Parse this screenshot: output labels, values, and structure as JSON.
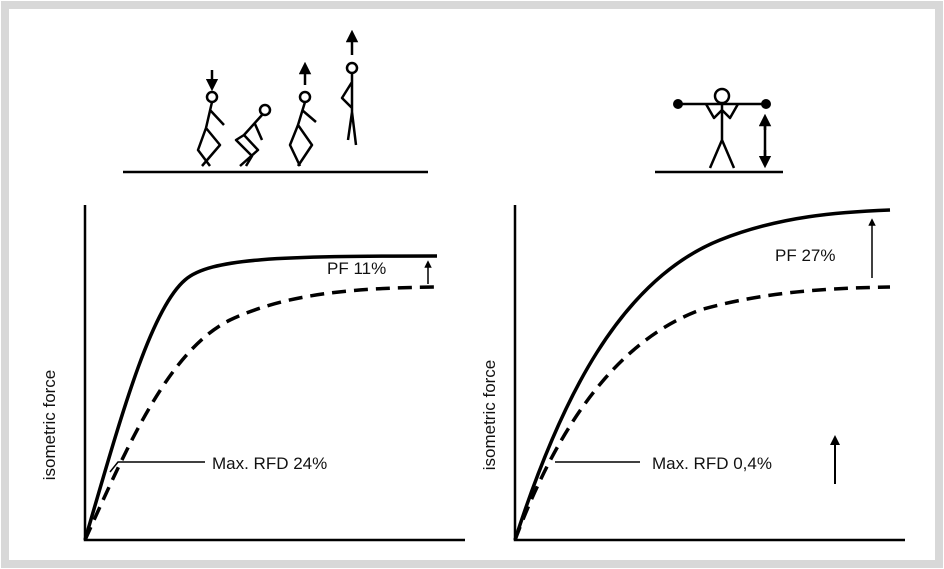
{
  "panels": [
    {
      "y_label": "isometric force",
      "pf_label": "PF 11%",
      "rfd_label": "Max. RFD 24%"
    },
    {
      "y_label": "isometric force",
      "pf_label": "PF 27%",
      "rfd_label": "Max. RFD 0,4%"
    }
  ]
}
